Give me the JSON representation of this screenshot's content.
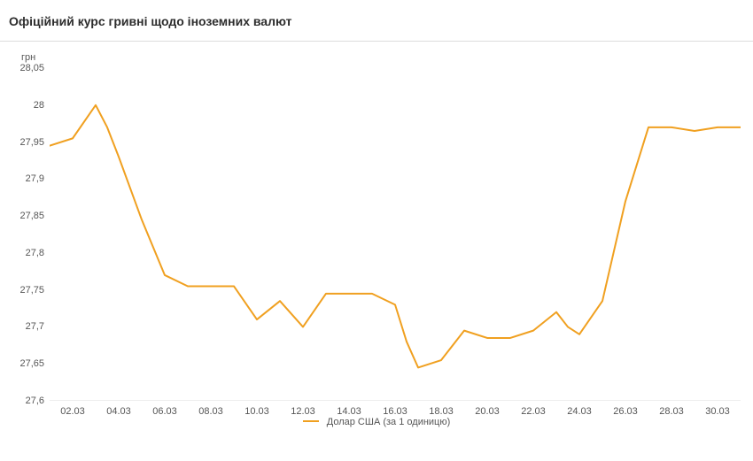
{
  "header": {
    "title": "Офіційний курс гривні щодо іноземних валют"
  },
  "chart": {
    "type": "line",
    "y_axis_title": "грн",
    "ylim": [
      27.6,
      28.05
    ],
    "y_ticks": [
      27.6,
      27.65,
      27.7,
      27.75,
      27.8,
      27.85,
      27.9,
      27.95,
      28,
      28.05
    ],
    "y_tick_labels": [
      "27,6",
      "27,65",
      "27,7",
      "27,75",
      "27,8",
      "27,85",
      "27,9",
      "27,95",
      "28",
      "28,05"
    ],
    "x_ticks": [
      1,
      3,
      5,
      7,
      9,
      11,
      13,
      15,
      17,
      19,
      21,
      23,
      25,
      27,
      29
    ],
    "x_tick_labels": [
      "02.03",
      "04.03",
      "06.03",
      "08.03",
      "10.03",
      "12.03",
      "14.03",
      "16.03",
      "18.03",
      "20.03",
      "22.03",
      "24.03",
      "26.03",
      "28.03",
      "30.03"
    ],
    "x_range": [
      0,
      30
    ],
    "line_color": "#f0a020",
    "line_width": 2,
    "background_color": "#ffffff",
    "baseline_color": "#dcdcdc",
    "text_color": "#555555",
    "title_color": "#2c2c2c",
    "title_fontsize": 14,
    "tick_fontsize": 11,
    "legend": {
      "label": "Долар США (за 1 одиницю)",
      "color": "#f0a020"
    },
    "series": {
      "x": [
        0,
        1,
        2,
        2.5,
        3,
        4,
        5,
        6,
        7,
        8,
        9,
        10,
        11,
        12,
        13,
        14,
        15,
        15.5,
        16,
        17,
        18,
        19,
        20,
        21,
        22,
        22.5,
        23,
        24,
        25,
        26,
        27,
        28,
        29,
        30
      ],
      "y": [
        27.945,
        27.955,
        28.0,
        27.97,
        27.93,
        27.845,
        27.77,
        27.755,
        27.755,
        27.755,
        27.71,
        27.735,
        27.7,
        27.745,
        27.745,
        27.745,
        27.73,
        27.68,
        27.645,
        27.655,
        27.695,
        27.685,
        27.685,
        27.695,
        27.72,
        27.7,
        27.69,
        27.735,
        27.87,
        27.97,
        27.97,
        27.965,
        27.97,
        27.97
      ]
    }
  }
}
